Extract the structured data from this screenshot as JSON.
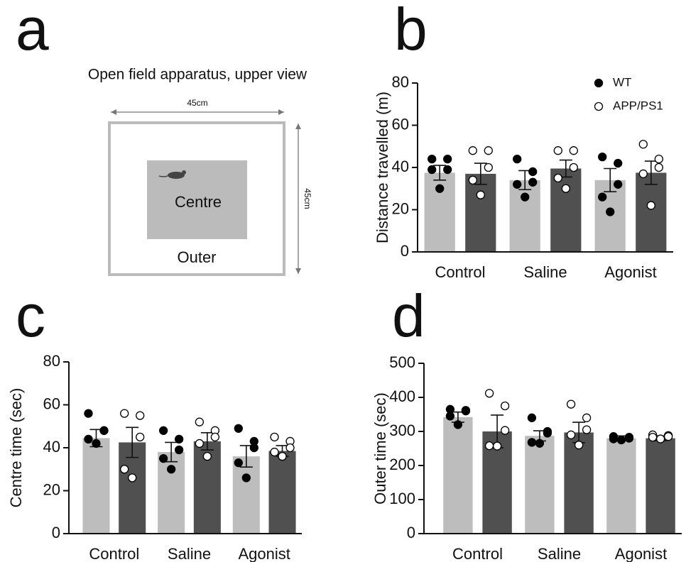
{
  "panel_labels": [
    "a",
    "b",
    "c",
    "d"
  ],
  "diagram": {
    "title": "Open field apparatus, upper view",
    "width_label": "45cm",
    "height_label": "45cm",
    "centre_label": "Centre",
    "outer_label": "Outer"
  },
  "chart_data": [
    {
      "type": "bar",
      "ylabel": "Distance travelled (m)",
      "categories": [
        "Control",
        "Saline",
        "Agonist"
      ],
      "ylim": [
        0,
        80
      ],
      "yticks": [
        0,
        20,
        40,
        60,
        80
      ],
      "legend": "upper right",
      "series": [
        {
          "name": "WT",
          "color": "#bdbdbd",
          "marker": "filled",
          "values": [
            37.5,
            34,
            34
          ],
          "errors": [
            3.5,
            4.5,
            5.5
          ],
          "points": [
            [
              44,
              44,
              39,
              39,
              30
            ],
            [
              44,
              38,
              33,
              32,
              26
            ],
            [
              45,
              42,
              32,
              26,
              19
            ]
          ]
        },
        {
          "name": "APP/PS1",
          "color": "#505050",
          "marker": "open",
          "values": [
            37,
            39.5,
            37.5
          ],
          "errors": [
            5,
            4,
            5.5
          ],
          "points": [
            [
              48,
              48,
              40,
              34,
              27
            ],
            [
              48,
              48,
              40,
              35,
              30
            ],
            [
              51,
              44,
              40,
              37,
              22
            ]
          ]
        }
      ]
    },
    {
      "type": "bar",
      "ylabel": "Centre time (sec)",
      "categories": [
        "Control",
        "Saline",
        "Agonist"
      ],
      "ylim": [
        0,
        80
      ],
      "yticks": [
        0,
        20,
        40,
        60,
        80
      ],
      "series": [
        {
          "name": "WT",
          "color": "#bdbdbd",
          "marker": "filled",
          "values": [
            44.5,
            38,
            36
          ],
          "errors": [
            4,
            4.5,
            5
          ],
          "points": [
            [
              56,
              48,
              48,
              44,
              42
            ],
            [
              48,
              44,
              39,
              35,
              30
            ],
            [
              49,
              43,
              40,
              33,
              26
            ]
          ]
        },
        {
          "name": "APP/PS1",
          "color": "#505050",
          "marker": "open",
          "values": [
            42.5,
            43,
            38.5
          ],
          "errors": [
            7,
            4,
            2.5
          ],
          "points": [
            [
              56,
              55,
              45,
              30,
              26
            ],
            [
              52,
              48,
              45,
              42,
              36
            ],
            [
              45,
              43,
              40,
              38,
              36
            ]
          ]
        }
      ]
    },
    {
      "type": "bar",
      "ylabel": "Outer time (sec)",
      "categories": [
        "Control",
        "Saline",
        "Agonist"
      ],
      "ylim": [
        0,
        500
      ],
      "yticks": [
        0,
        100,
        200,
        300,
        400,
        500
      ],
      "series": [
        {
          "name": "WT",
          "color": "#bdbdbd",
          "marker": "filled",
          "values": [
            342,
            287,
            280
          ],
          "errors": [
            15,
            15,
            7
          ],
          "points": [
            [
              365,
              362,
              360,
              345,
              320
            ],
            [
              340,
              300,
              295,
              268,
              265
            ],
            [
              285,
              283,
              280,
              278,
              275
            ]
          ]
        },
        {
          "name": "APP/PS1",
          "color": "#505050",
          "marker": "open",
          "values": [
            300,
            297,
            280
          ],
          "errors": [
            48,
            30,
            7
          ],
          "points": [
            [
              412,
              375,
              303,
              258,
              257
            ],
            [
              380,
              340,
              305,
              290,
              260
            ],
            [
              290,
              288,
              285,
              283,
              278
            ]
          ]
        }
      ]
    }
  ]
}
